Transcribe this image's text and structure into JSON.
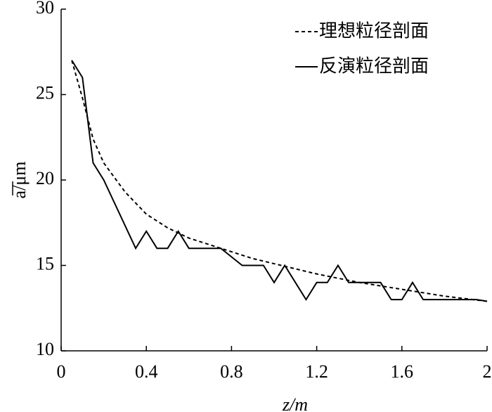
{
  "chart_data": {
    "type": "line",
    "xlabel": "z/m",
    "ylabel": "a/μm",
    "xlim": [
      0,
      2
    ],
    "ylim": [
      10,
      30
    ],
    "xticks": [
      0,
      0.4,
      0.8,
      1.2,
      1.6,
      2
    ],
    "yticks": [
      10,
      15,
      20,
      25,
      30
    ],
    "legend": "upper right",
    "series": [
      {
        "name": "理想粒径剖面",
        "color": "#000000",
        "style": "dashed",
        "x": [
          0.05,
          0.1,
          0.15,
          0.2,
          0.3,
          0.4,
          0.5,
          0.6,
          0.7,
          0.8,
          0.9,
          1.0,
          1.2,
          1.4,
          1.6,
          1.8,
          2.0
        ],
        "values": [
          27,
          24.8,
          22.4,
          21,
          19.3,
          18,
          17.2,
          16.6,
          16.2,
          15.8,
          15.4,
          15.1,
          14.5,
          14,
          13.6,
          13.2,
          12.9
        ]
      },
      {
        "name": "反演粒径剖面",
        "color": "#000000",
        "style": "solid",
        "x": [
          0.05,
          0.1,
          0.15,
          0.2,
          0.35,
          0.4,
          0.45,
          0.5,
          0.55,
          0.6,
          0.65,
          0.7,
          0.75,
          0.8,
          0.85,
          0.9,
          0.95,
          1.0,
          1.05,
          1.1,
          1.15,
          1.2,
          1.25,
          1.3,
          1.35,
          1.4,
          1.45,
          1.5,
          1.55,
          1.6,
          1.65,
          1.7,
          1.75,
          1.8,
          1.85,
          1.9,
          1.95,
          2.0
        ],
        "values": [
          27,
          26,
          21,
          20,
          16,
          17,
          16,
          16,
          17,
          16,
          16,
          16,
          16,
          15.5,
          15,
          15,
          15,
          14,
          15,
          14,
          13,
          14,
          14,
          15,
          14,
          14,
          14,
          14,
          13,
          13,
          14,
          13,
          13,
          13,
          13,
          13,
          13,
          12.9
        ]
      }
    ]
  }
}
